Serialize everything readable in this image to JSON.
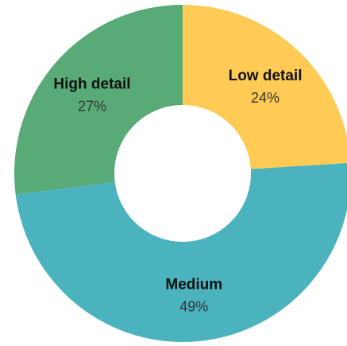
{
  "chart_data": {
    "type": "pie",
    "title": "",
    "series": [
      {
        "values": [
          24,
          49,
          27
        ]
      }
    ],
    "categories": [
      "Low detail",
      "Medium",
      "High detail"
    ],
    "slices": [
      {
        "label": "Low detail",
        "value": 24,
        "display": "24%",
        "color": "#FFCB55"
      },
      {
        "label": "Medium",
        "value": 49,
        "display": "49%",
        "color": "#4BB3BE"
      },
      {
        "label": "High detail",
        "value": 27,
        "display": "27%",
        "color": "#58AB77"
      }
    ],
    "donut": true,
    "start_angle_deg": 0,
    "direction": "clockwise"
  }
}
